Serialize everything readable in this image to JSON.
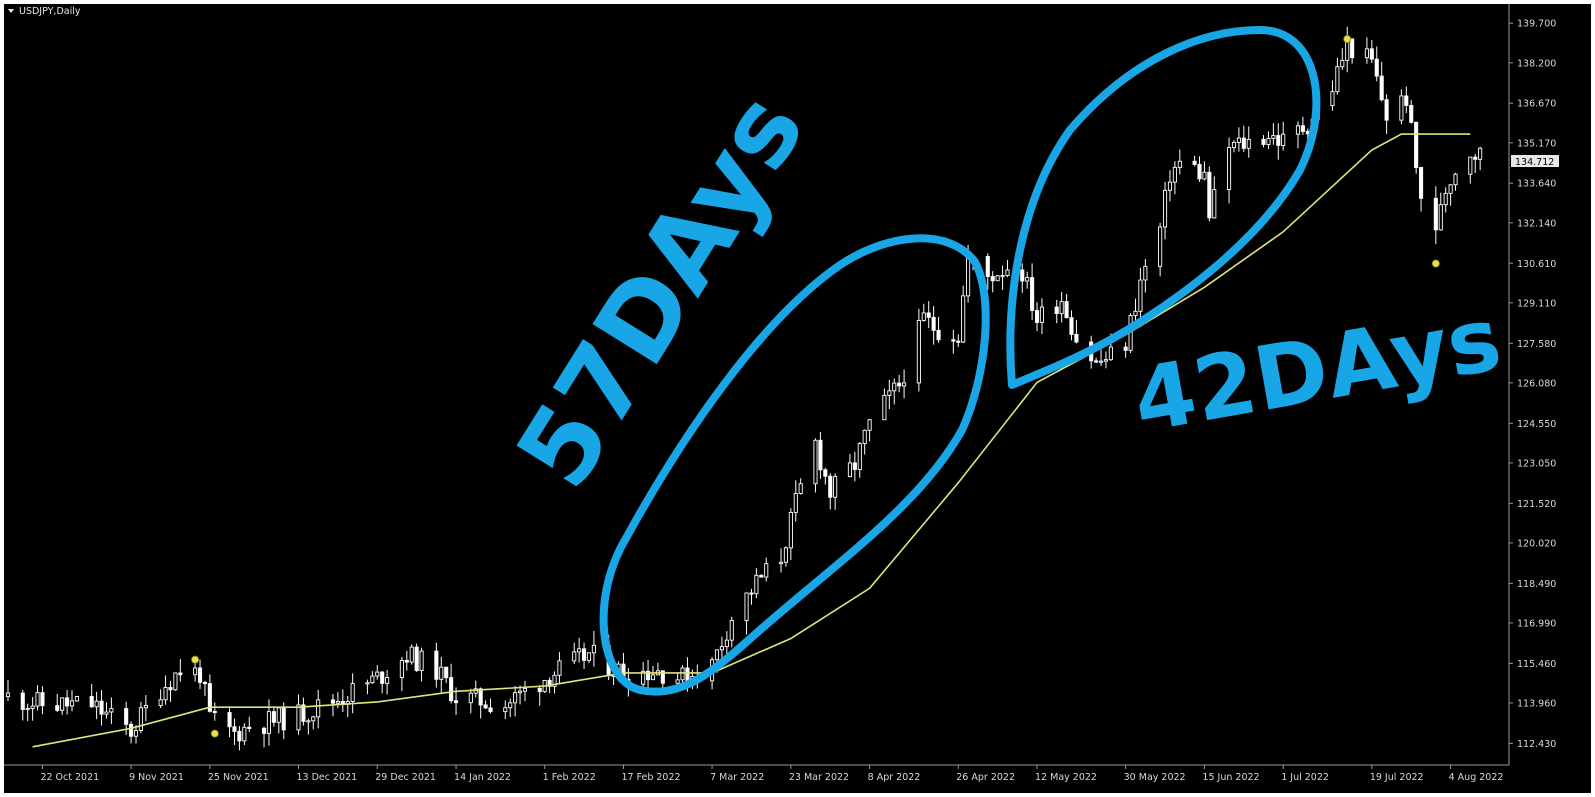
{
  "window": {
    "title": "USDJPY,Daily",
    "current_price": "134.712"
  },
  "annotations": {
    "left_label": "57DAys",
    "right_label": "42DAys"
  },
  "colors": {
    "background": "#000000",
    "candle": "#ffffff",
    "moving_average": "#e3e37a",
    "annotation": "#18a6e6",
    "marker": "#e6e04a",
    "axis_text": "#d8d8d8"
  },
  "chart_data": {
    "type": "candlestick",
    "title": "USDJPY,Daily",
    "xlabel": "",
    "ylabel": "",
    "ylim": [
      111.8,
      140.2
    ],
    "grid": false,
    "y_ticks": [
      "139.700",
      "138.200",
      "136.670",
      "135.170",
      "133.640",
      "132.140",
      "130.610",
      "129.110",
      "127.580",
      "126.080",
      "124.550",
      "123.050",
      "121.520",
      "120.020",
      "118.490",
      "116.990",
      "115.460",
      "113.960",
      "112.430"
    ],
    "x_ticks": [
      {
        "label": "22 Oct 2021",
        "date": "2021-10-22"
      },
      {
        "label": "9 Nov 2021",
        "date": "2021-11-09"
      },
      {
        "label": "25 Nov 2021",
        "date": "2021-11-25"
      },
      {
        "label": "13 Dec 2021",
        "date": "2021-12-13"
      },
      {
        "label": "29 Dec 2021",
        "date": "2021-12-29"
      },
      {
        "label": "14 Jan 2022",
        "date": "2022-01-14"
      },
      {
        "label": "1 Feb 2022",
        "date": "2022-02-01"
      },
      {
        "label": "17 Feb 2022",
        "date": "2022-02-17"
      },
      {
        "label": "7 Mar 2022",
        "date": "2022-03-07"
      },
      {
        "label": "23 Mar 2022",
        "date": "2022-03-23"
      },
      {
        "label": "8 Apr 2022",
        "date": "2022-04-08"
      },
      {
        "label": "26 Apr 2022",
        "date": "2022-04-26"
      },
      {
        "label": "12 May 2022",
        "date": "2022-05-12"
      },
      {
        "label": "30 May 2022",
        "date": "2022-05-30"
      },
      {
        "label": "15 Jun 2022",
        "date": "2022-06-15"
      },
      {
        "label": "1 Jul 2022",
        "date": "2022-07-01"
      },
      {
        "label": "19 Jul 2022",
        "date": "2022-07-19"
      },
      {
        "label": "4 Aug 2022",
        "date": "2022-08-04"
      }
    ],
    "close_points": [
      {
        "date": "2021-10-15",
        "close": 114.2
      },
      {
        "date": "2021-10-22",
        "close": 113.9
      },
      {
        "date": "2021-11-01",
        "close": 113.9
      },
      {
        "date": "2021-11-09",
        "close": 112.9
      },
      {
        "date": "2021-11-15",
        "close": 114.5
      },
      {
        "date": "2021-11-19",
        "close": 115.2
      },
      {
        "date": "2021-11-23",
        "close": 115.1
      },
      {
        "date": "2021-11-25",
        "close": 113.4
      },
      {
        "date": "2021-11-30",
        "close": 112.8
      },
      {
        "date": "2021-12-03",
        "close": 113.1
      },
      {
        "date": "2021-12-13",
        "close": 113.5
      },
      {
        "date": "2021-12-22",
        "close": 114.2
      },
      {
        "date": "2021-12-29",
        "close": 114.9
      },
      {
        "date": "2022-01-04",
        "close": 115.8
      },
      {
        "date": "2022-01-10",
        "close": 115.2
      },
      {
        "date": "2022-01-14",
        "close": 114.2
      },
      {
        "date": "2022-01-24",
        "close": 113.9
      },
      {
        "date": "2022-02-01",
        "close": 114.9
      },
      {
        "date": "2022-02-10",
        "close": 115.8
      },
      {
        "date": "2022-02-17",
        "close": 115.1
      },
      {
        "date": "2022-02-24",
        "close": 115.2
      },
      {
        "date": "2022-03-01",
        "close": 114.9
      },
      {
        "date": "2022-03-07",
        "close": 115.4
      },
      {
        "date": "2022-03-11",
        "close": 117.2
      },
      {
        "date": "2022-03-16",
        "close": 118.5
      },
      {
        "date": "2022-03-21",
        "close": 119.5
      },
      {
        "date": "2022-03-24",
        "close": 121.5
      },
      {
        "date": "2022-03-28",
        "close": 123.8
      },
      {
        "date": "2022-03-31",
        "close": 121.9
      },
      {
        "date": "2022-04-05",
        "close": 123.0
      },
      {
        "date": "2022-04-08",
        "close": 124.5
      },
      {
        "date": "2022-04-14",
        "close": 126.0
      },
      {
        "date": "2022-04-19",
        "close": 128.5
      },
      {
        "date": "2022-04-21",
        "close": 128.2
      },
      {
        "date": "2022-04-26",
        "close": 127.9
      },
      {
        "date": "2022-04-28",
        "close": 130.8
      },
      {
        "date": "2022-05-02",
        "close": 130.1
      },
      {
        "date": "2022-05-06",
        "close": 130.5
      },
      {
        "date": "2022-05-09",
        "close": 130.3
      },
      {
        "date": "2022-05-12",
        "close": 128.5
      },
      {
        "date": "2022-05-17",
        "close": 129.3
      },
      {
        "date": "2022-05-20",
        "close": 127.8
      },
      {
        "date": "2022-05-24",
        "close": 126.8
      },
      {
        "date": "2022-05-27",
        "close": 127.1
      },
      {
        "date": "2022-05-30",
        "close": 127.6
      },
      {
        "date": "2022-06-02",
        "close": 129.9
      },
      {
        "date": "2022-06-06",
        "close": 131.9
      },
      {
        "date": "2022-06-08",
        "close": 134.0
      },
      {
        "date": "2022-06-10",
        "close": 134.4
      },
      {
        "date": "2022-06-13",
        "close": 134.2
      },
      {
        "date": "2022-06-15",
        "close": 133.9
      },
      {
        "date": "2022-06-16",
        "close": 132.4
      },
      {
        "date": "2022-06-20",
        "close": 135.0
      },
      {
        "date": "2022-06-24",
        "close": 135.2
      },
      {
        "date": "2022-06-28",
        "close": 135.5
      },
      {
        "date": "2022-07-01",
        "close": 135.2
      },
      {
        "date": "2022-07-06",
        "close": 135.9
      },
      {
        "date": "2022-07-11",
        "close": 137.3
      },
      {
        "date": "2022-07-14",
        "close": 138.9
      },
      {
        "date": "2022-07-19",
        "close": 138.2
      },
      {
        "date": "2022-07-22",
        "close": 136.2
      },
      {
        "date": "2022-07-26",
        "close": 136.9
      },
      {
        "date": "2022-07-28",
        "close": 134.2
      },
      {
        "date": "2022-07-29",
        "close": 133.2
      },
      {
        "date": "2022-08-01",
        "close": 131.6
      },
      {
        "date": "2022-08-02",
        "close": 133.0
      },
      {
        "date": "2022-08-04",
        "close": 133.9
      },
      {
        "date": "2022-08-08",
        "close": 134.9
      },
      {
        "date": "2022-08-10",
        "close": 134.7
      }
    ],
    "moving_average": [
      {
        "date": "2021-10-20",
        "value": 112.3
      },
      {
        "date": "2021-11-09",
        "value": 113.0
      },
      {
        "date": "2021-11-25",
        "value": 113.8
      },
      {
        "date": "2021-12-13",
        "value": 113.8
      },
      {
        "date": "2021-12-29",
        "value": 114.0
      },
      {
        "date": "2022-01-14",
        "value": 114.4
      },
      {
        "date": "2022-02-01",
        "value": 114.6
      },
      {
        "date": "2022-02-17",
        "value": 115.1
      },
      {
        "date": "2022-03-07",
        "value": 115.1
      },
      {
        "date": "2022-03-23",
        "value": 116.4
      },
      {
        "date": "2022-04-08",
        "value": 118.3
      },
      {
        "date": "2022-04-26",
        "value": 122.3
      },
      {
        "date": "2022-05-12",
        "value": 126.1
      },
      {
        "date": "2022-05-30",
        "value": 127.9
      },
      {
        "date": "2022-06-15",
        "value": 129.7
      },
      {
        "date": "2022-07-01",
        "value": 131.8
      },
      {
        "date": "2022-07-19",
        "value": 134.9
      },
      {
        "date": "2022-07-25",
        "value": 135.5
      },
      {
        "date": "2022-08-08",
        "value": 135.5
      }
    ],
    "fractal_markers": [
      {
        "date": "2021-11-22",
        "price": 115.6,
        "type": "high"
      },
      {
        "date": "2021-11-26",
        "price": 112.8,
        "type": "low"
      },
      {
        "date": "2022-07-14",
        "price": 139.1,
        "type": "high"
      },
      {
        "date": "2022-08-01",
        "price": 130.6,
        "type": "low"
      }
    ]
  }
}
